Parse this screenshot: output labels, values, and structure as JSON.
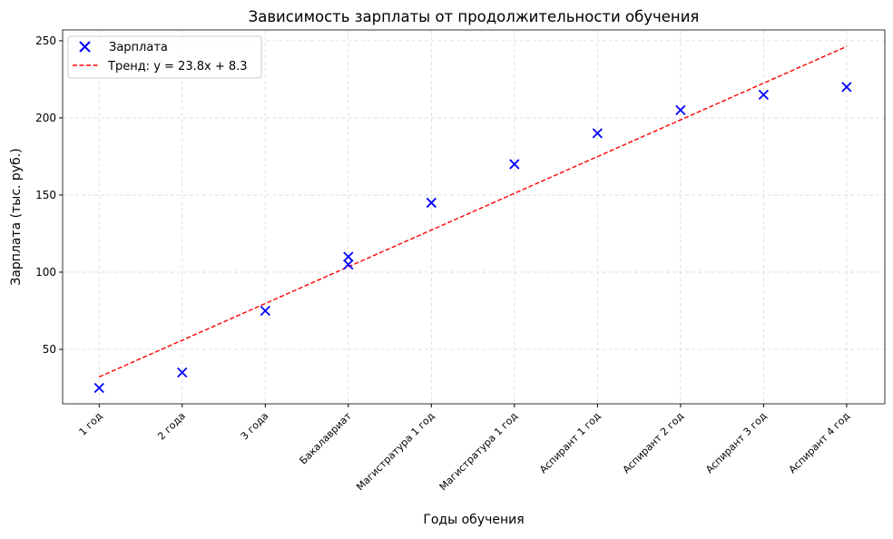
{
  "chart_data": {
    "type": "scatter",
    "title": "Зависимость зарплаты от продолжительности обучения",
    "xlabel": "Годы обучения",
    "ylabel": "Зарплата (тыс. руб.)",
    "categories": [
      "1 год",
      "2 года",
      "3 года",
      "Бакалавриат",
      "Магистратура 1 год",
      "Магистратура 1 год",
      "Аспирант 1 год",
      "Аспирант 2 год",
      "Аспирант 3 год",
      "Аспирант 4 год"
    ],
    "xlim": [
      0.56,
      10.46
    ],
    "ylim": [
      14.7,
      257
    ],
    "yticks": [
      50,
      100,
      150,
      200,
      250
    ],
    "grid": true,
    "legend_position": "top-left",
    "series": [
      {
        "name": "Зарплата",
        "kind": "scatter",
        "marker": "x",
        "color": "#0000ff",
        "x": [
          1,
          2,
          3,
          4,
          4,
          5,
          6,
          7,
          8,
          9,
          10
        ],
        "y": [
          25,
          35,
          75,
          110,
          105,
          145,
          170,
          190,
          205,
          215,
          220
        ]
      },
      {
        "name": "Тренд: y = 23.8x + 8.3",
        "kind": "line",
        "style": "dashed",
        "color": "#ff0000",
        "slope": 23.8,
        "intercept": 8.3,
        "x_range": [
          1,
          10
        ]
      }
    ]
  }
}
